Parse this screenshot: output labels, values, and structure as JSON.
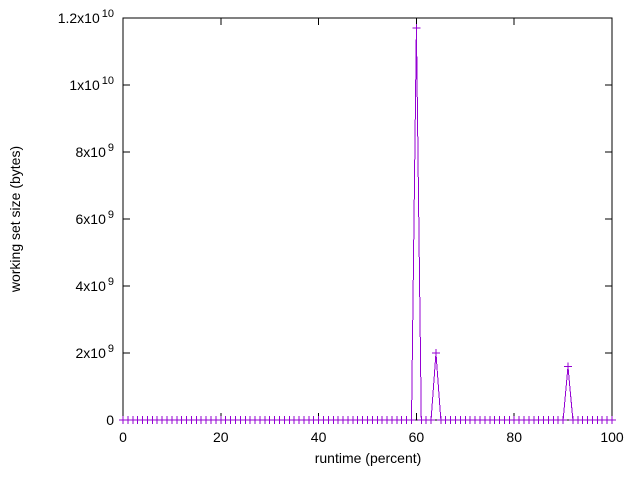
{
  "figure": {
    "background": "#ffffff",
    "frame_color": "#000000",
    "text_color": "#000000"
  },
  "chart_data": {
    "type": "line",
    "style": "linespoints",
    "title": "",
    "xlabel": "runtime (percent)",
    "ylabel": "working set size (bytes)",
    "xlim": [
      0,
      100
    ],
    "ylim": [
      0,
      12000000000
    ],
    "grid": false,
    "legend": "none",
    "x_ticks": [
      {
        "value": 0,
        "label": "0"
      },
      {
        "value": 20,
        "label": "20"
      },
      {
        "value": 40,
        "label": "40"
      },
      {
        "value": 60,
        "label": "60"
      },
      {
        "value": 80,
        "label": "80"
      },
      {
        "value": 100,
        "label": "100"
      }
    ],
    "y_ticks": [
      {
        "value": 0,
        "mantissa": "0",
        "exponent": ""
      },
      {
        "value": 2000000000,
        "mantissa": "2x10",
        "exponent": "9"
      },
      {
        "value": 4000000000,
        "mantissa": "4x10",
        "exponent": "9"
      },
      {
        "value": 6000000000,
        "mantissa": "6x10",
        "exponent": "9"
      },
      {
        "value": 8000000000,
        "mantissa": "8x10",
        "exponent": "9"
      },
      {
        "value": 10000000000,
        "mantissa": "1x10",
        "exponent": "10"
      },
      {
        "value": 12000000000,
        "mantissa": "1.2x10",
        "exponent": "10"
      }
    ],
    "series": [
      {
        "color": "#9400D3",
        "marker": "plus",
        "points": [
          [
            0,
            0
          ],
          [
            1,
            0
          ],
          [
            2,
            0
          ],
          [
            3,
            0
          ],
          [
            4,
            0
          ],
          [
            5,
            0
          ],
          [
            6,
            0
          ],
          [
            7,
            0
          ],
          [
            8,
            0
          ],
          [
            9,
            0
          ],
          [
            10,
            0
          ],
          [
            11,
            0
          ],
          [
            12,
            0
          ],
          [
            13,
            0
          ],
          [
            14,
            0
          ],
          [
            15,
            0
          ],
          [
            16,
            0
          ],
          [
            17,
            0
          ],
          [
            18,
            0
          ],
          [
            19,
            0
          ],
          [
            20,
            0
          ],
          [
            21,
            0
          ],
          [
            22,
            0
          ],
          [
            23,
            0
          ],
          [
            24,
            0
          ],
          [
            25,
            0
          ],
          [
            26,
            0
          ],
          [
            27,
            0
          ],
          [
            28,
            0
          ],
          [
            29,
            0
          ],
          [
            30,
            0
          ],
          [
            31,
            0
          ],
          [
            32,
            0
          ],
          [
            33,
            0
          ],
          [
            34,
            0
          ],
          [
            35,
            0
          ],
          [
            36,
            0
          ],
          [
            37,
            0
          ],
          [
            38,
            0
          ],
          [
            39,
            0
          ],
          [
            40,
            0
          ],
          [
            41,
            0
          ],
          [
            42,
            0
          ],
          [
            43,
            0
          ],
          [
            44,
            0
          ],
          [
            45,
            0
          ],
          [
            46,
            0
          ],
          [
            47,
            0
          ],
          [
            48,
            0
          ],
          [
            49,
            0
          ],
          [
            50,
            0
          ],
          [
            51,
            0
          ],
          [
            52,
            0
          ],
          [
            53,
            0
          ],
          [
            54,
            0
          ],
          [
            55,
            0
          ],
          [
            56,
            0
          ],
          [
            57,
            0
          ],
          [
            58,
            0
          ],
          [
            59,
            0
          ],
          [
            60,
            11700000000
          ],
          [
            61,
            0
          ],
          [
            62,
            0
          ],
          [
            63,
            0
          ],
          [
            64,
            2000000000
          ],
          [
            65,
            0
          ],
          [
            66,
            0
          ],
          [
            67,
            0
          ],
          [
            68,
            0
          ],
          [
            69,
            0
          ],
          [
            70,
            0
          ],
          [
            71,
            0
          ],
          [
            72,
            0
          ],
          [
            73,
            0
          ],
          [
            74,
            0
          ],
          [
            75,
            0
          ],
          [
            76,
            0
          ],
          [
            77,
            0
          ],
          [
            78,
            0
          ],
          [
            79,
            0
          ],
          [
            80,
            0
          ],
          [
            81,
            0
          ],
          [
            82,
            0
          ],
          [
            83,
            0
          ],
          [
            84,
            0
          ],
          [
            85,
            0
          ],
          [
            86,
            0
          ],
          [
            87,
            0
          ],
          [
            88,
            0
          ],
          [
            89,
            0
          ],
          [
            90,
            0
          ],
          [
            91,
            1600000000
          ],
          [
            92,
            0
          ],
          [
            93,
            0
          ],
          [
            94,
            0
          ],
          [
            95,
            0
          ],
          [
            96,
            0
          ],
          [
            97,
            0
          ],
          [
            98,
            0
          ],
          [
            99,
            0
          ],
          [
            100,
            0
          ]
        ]
      }
    ]
  }
}
